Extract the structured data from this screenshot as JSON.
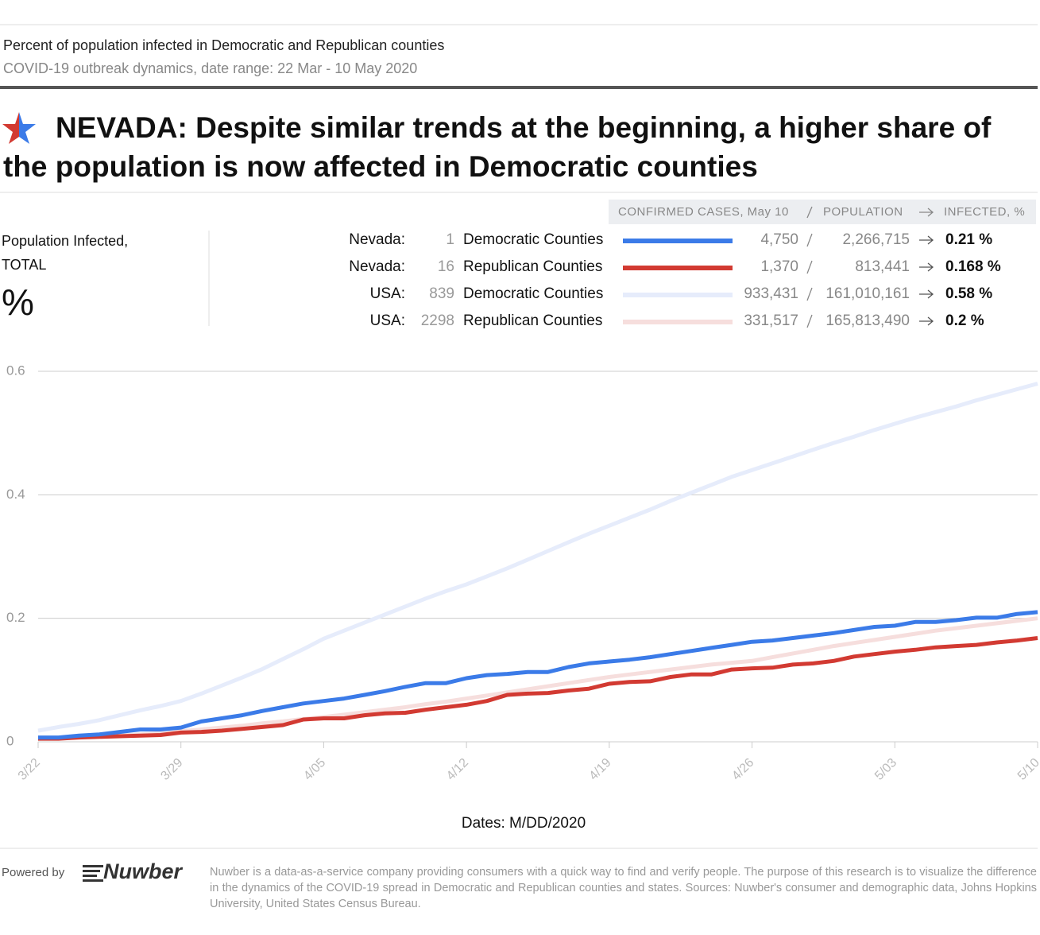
{
  "header": {
    "title": "Percent of population infected in Democratic and Republican counties",
    "subtitle": "COVID-19 outbreak dynamics, date range: 22 Mar - 10 May 2020",
    "headline": "NEVADA: Despite similar trends at the beginning, a higher share of the population is now affected in Democratic counties"
  },
  "left_label": {
    "title": "Population Infected, TOTAL",
    "unit": "%"
  },
  "legend_header": {
    "cases": "CONFIRMED CASES, May 10",
    "population": "POPULATION",
    "infected": "INFECTED, %"
  },
  "chart_data": {
    "type": "line",
    "x_label": "Dates: M/DD/2020",
    "categories": [
      "3/22",
      null,
      null,
      null,
      null,
      null,
      null,
      "3/29",
      null,
      null,
      null,
      null,
      null,
      null,
      "4/05",
      null,
      null,
      null,
      null,
      null,
      null,
      "4/12",
      null,
      null,
      null,
      null,
      null,
      null,
      "4/19",
      null,
      null,
      null,
      null,
      null,
      null,
      "4/26",
      null,
      null,
      null,
      null,
      null,
      null,
      "5/03",
      null,
      null,
      null,
      null,
      null,
      null,
      "5/10"
    ],
    "ylim": [
      0,
      0.6
    ],
    "yticks": [
      0,
      0.2,
      0.4,
      0.6
    ],
    "grid": true,
    "series": [
      {
        "region": "Nevada:",
        "counties": "1",
        "name": "Democratic Counties",
        "color": "#3b7be8",
        "cases": "4,750",
        "population": "2,266,715",
        "infected": "0.21 %",
        "values": [
          0.007,
          0.007,
          0.01,
          0.012,
          0.016,
          0.02,
          0.02,
          0.023,
          0.033,
          0.038,
          0.043,
          0.05,
          0.056,
          0.062,
          0.066,
          0.07,
          0.076,
          0.082,
          0.089,
          0.095,
          0.095,
          0.103,
          0.108,
          0.11,
          0.113,
          0.113,
          0.121,
          0.127,
          0.13,
          0.133,
          0.137,
          0.142,
          0.147,
          0.152,
          0.157,
          0.162,
          0.164,
          0.168,
          0.172,
          0.176,
          0.181,
          0.186,
          0.188,
          0.194,
          0.194,
          0.197,
          0.201,
          0.201,
          0.207,
          0.21
        ]
      },
      {
        "region": "Nevada:",
        "counties": "16",
        "name": "Republican Counties",
        "color": "#d23a32",
        "cases": "1,370",
        "population": "813,441",
        "infected": "0.168 %",
        "values": [
          0.005,
          0.005,
          0.007,
          0.008,
          0.009,
          0.01,
          0.011,
          0.015,
          0.016,
          0.018,
          0.021,
          0.024,
          0.027,
          0.036,
          0.038,
          0.038,
          0.043,
          0.046,
          0.047,
          0.052,
          0.056,
          0.06,
          0.066,
          0.076,
          0.078,
          0.079,
          0.083,
          0.086,
          0.094,
          0.097,
          0.098,
          0.105,
          0.109,
          0.109,
          0.117,
          0.119,
          0.12,
          0.125,
          0.127,
          0.131,
          0.138,
          0.142,
          0.146,
          0.149,
          0.153,
          0.155,
          0.157,
          0.161,
          0.164,
          0.168
        ]
      },
      {
        "region": "USA:",
        "counties": "839",
        "name": "Democratic Counties",
        "color": "#e6ecfb",
        "cases": "933,431",
        "population": "161,010,161",
        "infected": "0.58 %",
        "values": [
          0.018,
          0.024,
          0.029,
          0.035,
          0.043,
          0.051,
          0.058,
          0.066,
          0.078,
          0.091,
          0.104,
          0.118,
          0.134,
          0.15,
          0.167,
          0.18,
          0.193,
          0.206,
          0.219,
          0.232,
          0.244,
          0.255,
          0.268,
          0.281,
          0.295,
          0.309,
          0.323,
          0.337,
          0.35,
          0.363,
          0.376,
          0.39,
          0.403,
          0.416,
          0.429,
          0.44,
          0.451,
          0.462,
          0.473,
          0.484,
          0.494,
          0.505,
          0.515,
          0.525,
          0.534,
          0.543,
          0.553,
          0.562,
          0.571,
          0.58
        ]
      },
      {
        "region": "USA:",
        "counties": "2298",
        "name": "Republican Counties",
        "color": "#f6dedd",
        "cases": "331,517",
        "population": "165,813,490",
        "infected": "0.2 %",
        "values": [
          0.005,
          0.006,
          0.007,
          0.009,
          0.01,
          0.012,
          0.014,
          0.017,
          0.02,
          0.023,
          0.026,
          0.03,
          0.033,
          0.037,
          0.04,
          0.044,
          0.048,
          0.052,
          0.056,
          0.061,
          0.065,
          0.07,
          0.075,
          0.08,
          0.085,
          0.09,
          0.095,
          0.1,
          0.105,
          0.109,
          0.113,
          0.117,
          0.121,
          0.125,
          0.128,
          0.131,
          0.137,
          0.143,
          0.149,
          0.155,
          0.16,
          0.165,
          0.17,
          0.175,
          0.18,
          0.184,
          0.188,
          0.192,
          0.196,
          0.2
        ]
      }
    ]
  },
  "footer": {
    "powered": "Powered by",
    "logo": "Nuwber",
    "text": "Nuwber is a data-as-a-service company providing consumers with a quick way to find and verify people. The purpose of this research is to visualize the difference in the dynamics of the COVID-19 spread in Democratic and Republican counties and states. Sources: Nuwber's consumer and demographic data, Johns Hopkins University, United States Census Bureau."
  }
}
